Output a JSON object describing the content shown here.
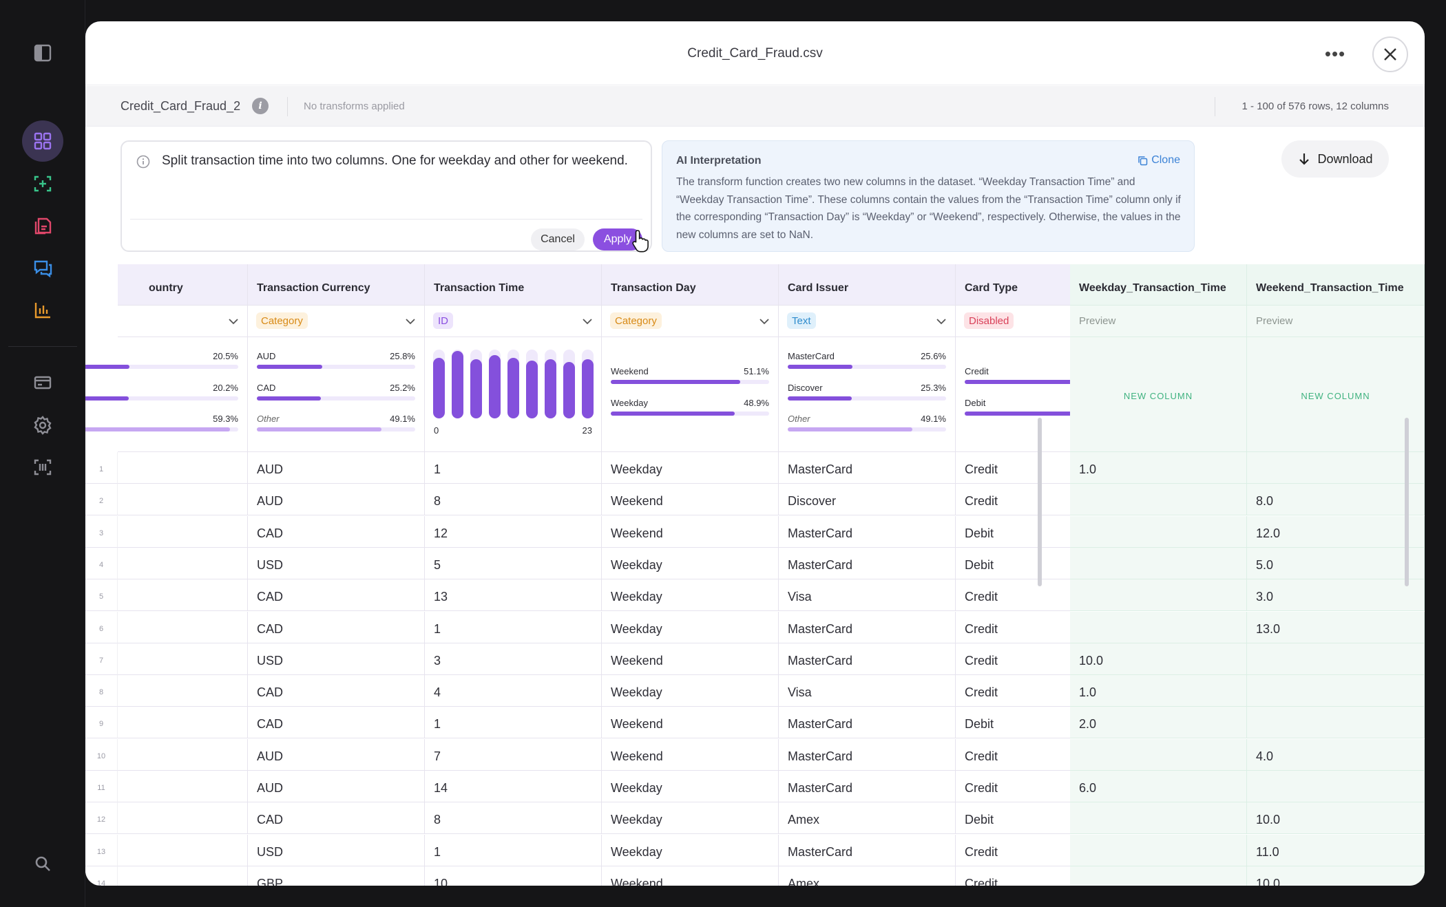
{
  "window": {
    "title": "Credit_Card_Fraud.csv",
    "more_label": "•••"
  },
  "infobar": {
    "dataset_name": "Credit_Card_Fraud_2",
    "info_glyph": "i",
    "transforms_status": "No transforms applied",
    "rows_info": "1 - 100 of 576 rows, 12 columns"
  },
  "prompt": {
    "text": "Split transaction time into two columns. One for weekday and other for weekend.",
    "cancel_label": "Cancel",
    "apply_label": "Apply"
  },
  "ai": {
    "title": "AI Interpretation",
    "clone_label": "Clone",
    "text": "The transform function creates two new columns in the dataset. “Weekday Transaction Time” and “Weekday Transaction Time”. These columns contain the values from the “Transaction Time” column only if the corresponding “Transaction Day” is “Weekday” or “Weekend”, respectively. Otherwise, the values in the new columns are set to NaN."
  },
  "download_label": "Download",
  "columns": [
    {
      "label": "ountry",
      "type": "",
      "new": false
    },
    {
      "label": "Transaction Currency",
      "type": "Category",
      "new": false
    },
    {
      "label": "Transaction Time",
      "type": "ID",
      "new": false
    },
    {
      "label": "Transaction Day",
      "type": "Category",
      "new": false
    },
    {
      "label": "Card Issuer",
      "type": "Text",
      "new": false
    },
    {
      "label": "Card Type",
      "type": "Disabled",
      "new": false
    },
    {
      "label": "Weekday_Transaction_Time",
      "type": "Preview",
      "new": true
    },
    {
      "label": "Weekend_Transaction_Time",
      "type": "Preview",
      "new": true
    }
  ],
  "stats": {
    "country": [
      {
        "label": "",
        "pct": "20.5%",
        "value": 0.205
      },
      {
        "label": "",
        "pct": "20.2%",
        "value": 0.202
      },
      {
        "label": "",
        "pct": "59.3%",
        "value": 0.593,
        "light": true
      }
    ],
    "currency": [
      {
        "label": "AUD",
        "pct": "25.8%",
        "value": 0.258
      },
      {
        "label": "CAD",
        "pct": "25.2%",
        "value": 0.252
      },
      {
        "label": "Other",
        "pct": "49.1%",
        "value": 0.491,
        "light": true,
        "italic": true
      }
    ],
    "time_hist": {
      "values": [
        0.88,
        0.98,
        0.86,
        0.92,
        0.88,
        0.84,
        0.86,
        0.82,
        0.86
      ],
      "min_label": "0",
      "max_label": "23"
    },
    "day": [
      {
        "label": "Weekend",
        "pct": "51.1%",
        "value": 0.511
      },
      {
        "label": "Weekday",
        "pct": "48.9%",
        "value": 0.489
      }
    ],
    "issuer": [
      {
        "label": "MasterCard",
        "pct": "25.6%",
        "value": 0.256
      },
      {
        "label": "Discover",
        "pct": "25.3%",
        "value": 0.253
      },
      {
        "label": "Other",
        "pct": "49.1%",
        "value": 0.491,
        "light": true,
        "italic": true
      }
    ],
    "cardtype": [
      {
        "label": "Credit",
        "pct": "",
        "value": 0.68
      },
      {
        "label": "Debit",
        "pct": "",
        "value": 0.68
      }
    ],
    "new_column_label": "NEW COLUMN"
  },
  "rows": [
    {
      "n": "1",
      "cur": "AUD",
      "time": "1",
      "day": "Weekday",
      "issuer": "MasterCard",
      "type": "Credit",
      "wd": "1.0",
      "we": ""
    },
    {
      "n": "2",
      "cur": "AUD",
      "time": "8",
      "day": "Weekend",
      "issuer": "Discover",
      "type": "Credit",
      "wd": "",
      "we": "8.0"
    },
    {
      "n": "3",
      "cur": "CAD",
      "time": "12",
      "day": "Weekend",
      "issuer": "MasterCard",
      "type": "Debit",
      "wd": "",
      "we": "12.0"
    },
    {
      "n": "4",
      "cur": "USD",
      "time": "5",
      "day": "Weekday",
      "issuer": "MasterCard",
      "type": "Debit",
      "wd": "",
      "we": "5.0"
    },
    {
      "n": "5",
      "cur": "CAD",
      "time": "13",
      "day": "Weekday",
      "issuer": "Visa",
      "type": "Credit",
      "wd": "",
      "we": "3.0"
    },
    {
      "n": "6",
      "cur": "CAD",
      "time": "1",
      "day": "Weekday",
      "issuer": "MasterCard",
      "type": "Credit",
      "wd": "",
      "we": "13.0"
    },
    {
      "n": "7",
      "cur": "USD",
      "time": "3",
      "day": "Weekend",
      "issuer": "MasterCard",
      "type": "Credit",
      "wd": "10.0",
      "we": ""
    },
    {
      "n": "8",
      "cur": "CAD",
      "time": "4",
      "day": "Weekday",
      "issuer": "Visa",
      "type": "Credit",
      "wd": "1.0",
      "we": ""
    },
    {
      "n": "9",
      "cur": "CAD",
      "time": "1",
      "day": "Weekend",
      "issuer": "MasterCard",
      "type": "Debit",
      "wd": "2.0",
      "we": ""
    },
    {
      "n": "10",
      "cur": "AUD",
      "time": "7",
      "day": "Weekend",
      "issuer": "MasterCard",
      "type": "Credit",
      "wd": "",
      "we": "4.0"
    },
    {
      "n": "11",
      "cur": "AUD",
      "time": "14",
      "day": "Weekday",
      "issuer": "MasterCard",
      "type": "Credit",
      "wd": "6.0",
      "we": ""
    },
    {
      "n": "12",
      "cur": "CAD",
      "time": "8",
      "day": "Weekday",
      "issuer": "Amex",
      "type": "Debit",
      "wd": "",
      "we": "10.0"
    },
    {
      "n": "13",
      "cur": "USD",
      "time": "1",
      "day": "Weekday",
      "issuer": "MasterCard",
      "type": "Credit",
      "wd": "",
      "we": "11.0"
    },
    {
      "n": "14",
      "cur": "GBP",
      "time": "10",
      "day": "Weekend",
      "issuer": "Amex",
      "type": "Credit",
      "wd": "",
      "we": "10.0"
    }
  ],
  "sidebar": {
    "icons": [
      "panel-toggle-icon",
      "dashboard-grid-icon",
      "scan-add-icon",
      "documents-icon",
      "chat-icon",
      "bar-chart-icon",
      "billing-icon",
      "settings-icon",
      "scan-code-icon",
      "search-icon"
    ]
  },
  "colors": {
    "accent": "#8b4fe0",
    "new_column": "#5cc08f",
    "link": "#3b82d6"
  }
}
